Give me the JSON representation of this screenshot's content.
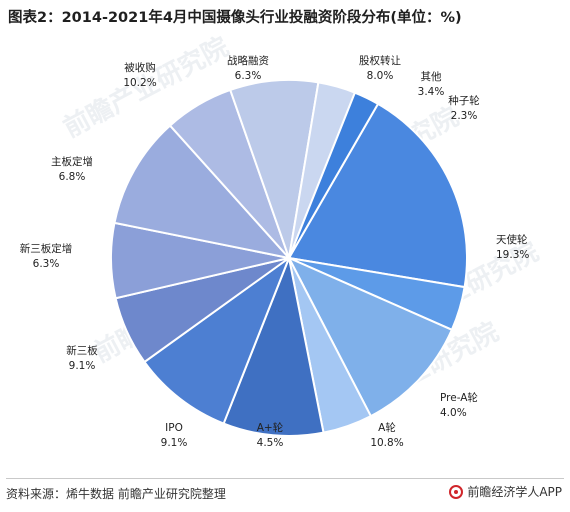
{
  "title": "图表2：2014-2021年4月中国摄像头行业投融资阶段分布(单位：%)",
  "chart_data": {
    "type": "pie",
    "unit": "%",
    "slices": [
      {
        "label": "天使轮",
        "value": 19.3,
        "value_label": "19.3%",
        "color": "#4a88e0"
      },
      {
        "label": "Pre-A轮",
        "value": 4.0,
        "value_label": "4.0%",
        "color": "#5d9be8"
      },
      {
        "label": "A轮",
        "value": 10.8,
        "value_label": "10.8%",
        "color": "#7fb0ea"
      },
      {
        "label": "A+轮",
        "value": 4.5,
        "value_label": "4.5%",
        "color": "#a4c7f3"
      },
      {
        "label": "IPO",
        "value": 9.1,
        "value_label": "9.1%",
        "color": "#3f70c2"
      },
      {
        "label": "新三板",
        "value": 9.1,
        "value_label": "9.1%",
        "color": "#4d7fd2"
      },
      {
        "label": "新三板定增",
        "value": 6.3,
        "value_label": "6.3%",
        "color": "#6e88cc"
      },
      {
        "label": "主板定增",
        "value": 6.8,
        "value_label": "6.8%",
        "color": "#8b9fd8"
      },
      {
        "label": "被收购",
        "value": 10.2,
        "value_label": "10.2%",
        "color": "#9aacde"
      },
      {
        "label": "战略融资",
        "value": 6.3,
        "value_label": "6.3%",
        "color": "#adbbe4"
      },
      {
        "label": "股权转让",
        "value": 8.0,
        "value_label": "8.0%",
        "color": "#bccae9"
      },
      {
        "label": "其他",
        "value": 3.4,
        "value_label": "3.4%",
        "color": "#cad7f0"
      },
      {
        "label": "种子轮",
        "value": 2.3,
        "value_label": "2.3%",
        "color": "#3d80dc"
      }
    ]
  },
  "watermark": "前瞻产业研究院",
  "footer": {
    "source": "资料来源：烯牛数据 前瞻产业研究院整理",
    "brand": "前瞻经济学人APP"
  }
}
